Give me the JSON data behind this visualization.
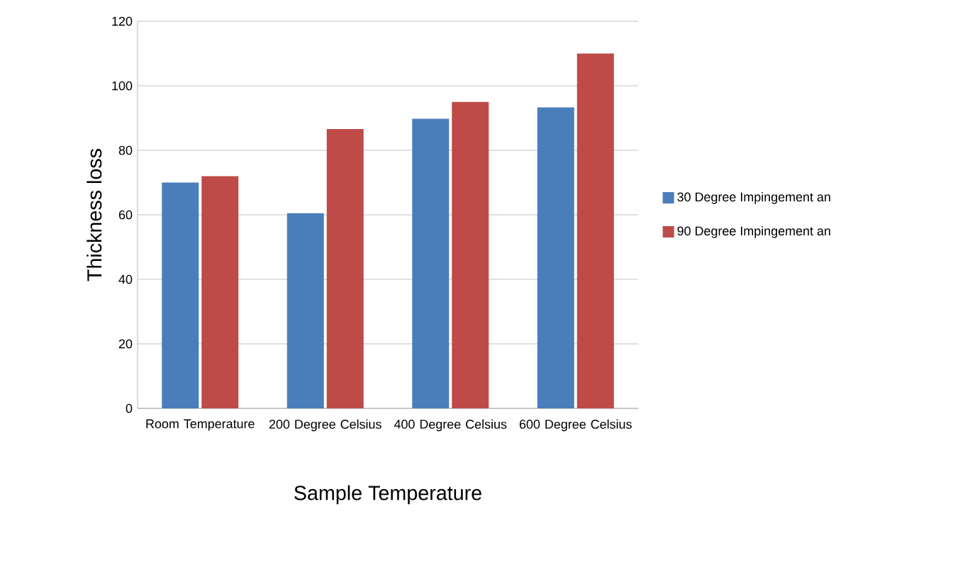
{
  "chart_data": {
    "type": "bar",
    "xlabel": "Sample Temperature",
    "ylabel": "Thickness loss",
    "categories": [
      "Room Temperature",
      "200 Degree Celsius",
      "400 Degree Celsius",
      "600 Degree Celsius"
    ],
    "series": [
      {
        "name": "30 Degree Impingement an",
        "color": "#4a7ebb",
        "values": [
          70,
          60.5,
          89.8,
          93.3
        ]
      },
      {
        "name": "90 Degree Impingement an",
        "color": "#be4b48",
        "values": [
          72,
          86.6,
          95,
          110
        ]
      }
    ],
    "ylim": [
      0,
      120
    ],
    "yticks": [
      0,
      20,
      40,
      60,
      80,
      100,
      120
    ],
    "grid": "y",
    "legend": "right"
  }
}
